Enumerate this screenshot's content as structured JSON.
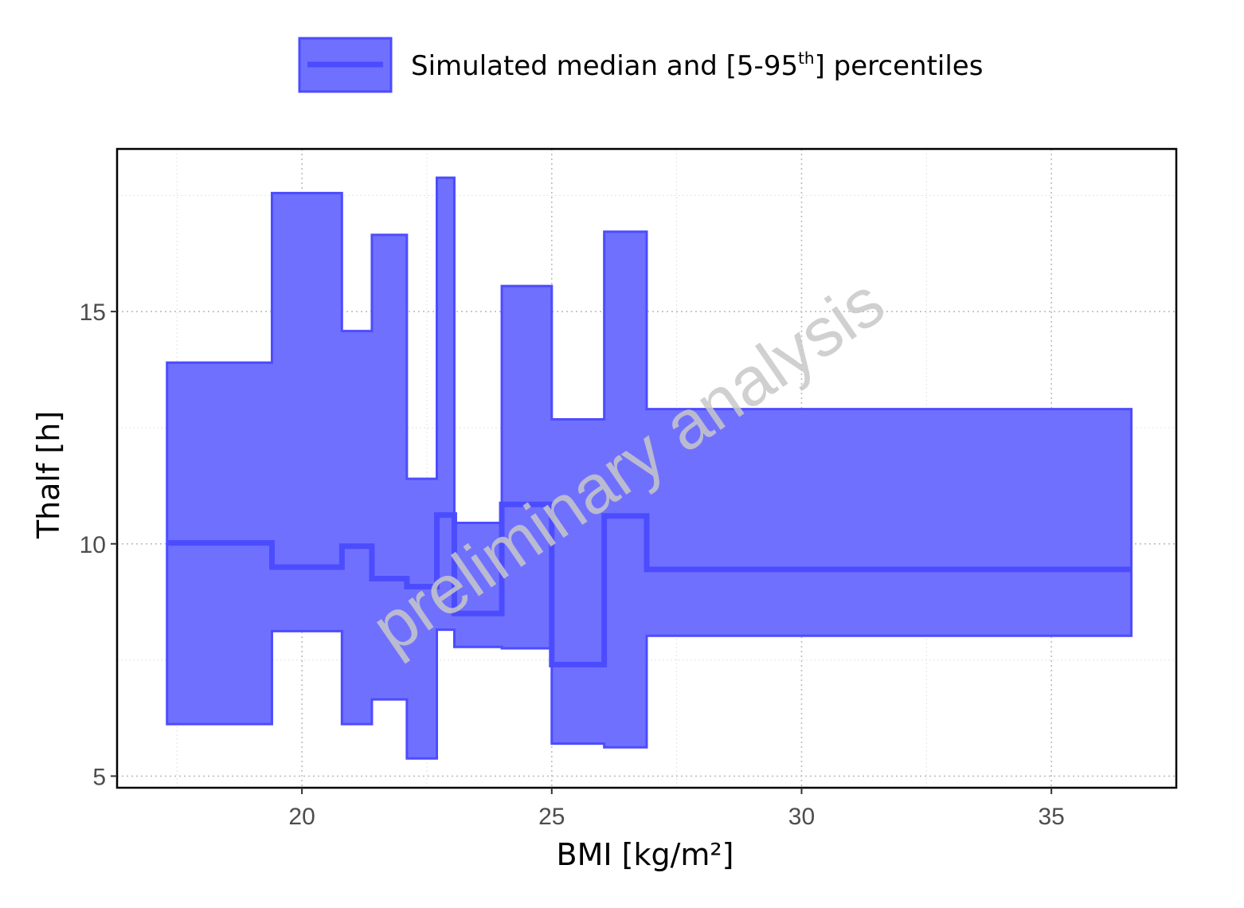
{
  "chart_data": {
    "type": "area",
    "xlabel": "BMI [kg/m²]",
    "ylabel": "Thalf [h]",
    "xlim": [
      16.3,
      37.5
    ],
    "ylim": [
      4.75,
      18.5
    ],
    "x_ticks": [
      20,
      25,
      30,
      35
    ],
    "y_ticks": [
      5,
      10,
      15
    ],
    "grid": true,
    "legend_position": "top-center",
    "legend": {
      "label": "Simulated median and [5-95",
      "label_sup": "th",
      "label_end": "] percentiles"
    },
    "watermark": "preliminary analysis",
    "colors": {
      "fill": "#7070ff",
      "line": "#4c4cff"
    },
    "series": [
      {
        "name": "Simulated median and [5-95th] percentiles",
        "steps": [
          {
            "x0": 17.3,
            "x1": 19.4,
            "median": 10.02,
            "p5": 6.12,
            "p95": 13.9
          },
          {
            "x0": 19.4,
            "x1": 20.8,
            "median": 9.5,
            "p5": 8.12,
            "p95": 17.55
          },
          {
            "x0": 20.8,
            "x1": 21.4,
            "median": 9.95,
            "p5": 6.12,
            "p95": 14.58
          },
          {
            "x0": 21.4,
            "x1": 22.1,
            "median": 9.25,
            "p5": 6.65,
            "p95": 16.65
          },
          {
            "x0": 22.1,
            "x1": 22.7,
            "median": 9.08,
            "p5": 5.38,
            "p95": 11.4
          },
          {
            "x0": 22.7,
            "x1": 23.05,
            "median": 10.62,
            "p5": 8.15,
            "p95": 17.88
          },
          {
            "x0": 23.05,
            "x1": 24.0,
            "median": 8.5,
            "p5": 7.78,
            "p95": 10.45
          },
          {
            "x0": 24.0,
            "x1": 25.0,
            "median": 10.85,
            "p5": 7.75,
            "p95": 15.55
          },
          {
            "x0": 25.0,
            "x1": 26.05,
            "median": 7.4,
            "p5": 5.7,
            "p95": 12.68
          },
          {
            "x0": 26.05,
            "x1": 26.9,
            "median": 10.6,
            "p5": 5.62,
            "p95": 16.72
          },
          {
            "x0": 26.9,
            "x1": 36.6,
            "median": 9.45,
            "p5": 8.02,
            "p95": 12.9
          }
        ]
      }
    ]
  }
}
